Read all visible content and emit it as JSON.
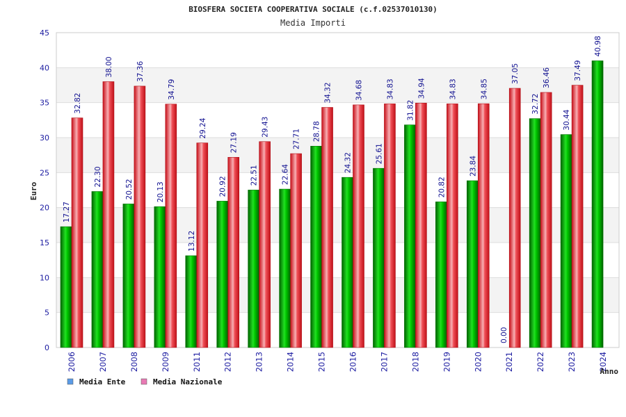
{
  "chart_data": {
    "type": "bar",
    "title": "BIOSFERA SOCIETA COOPERATIVA SOCIALE (c.f.02537010130)",
    "subtitle": "Media Importi",
    "xlabel": "Anno",
    "ylabel": "Euro",
    "ylim": [
      0,
      45
    ],
    "yticks": [
      0,
      5,
      10,
      15,
      20,
      25,
      30,
      35,
      40,
      45
    ],
    "grid": true,
    "legend_position": "bottom-left",
    "categories": [
      "2006",
      "2007",
      "2008",
      "2009",
      "2011",
      "2012",
      "2013",
      "2014",
      "2015",
      "2016",
      "2017",
      "2018",
      "2019",
      "2020",
      "2021",
      "2022",
      "2023",
      "2024"
    ],
    "series": [
      {
        "name": "Media Ente",
        "legend_color": "#5b9be6",
        "bar_color": "#00c000",
        "values": [
          17.27,
          22.3,
          20.52,
          20.13,
          13.12,
          20.92,
          22.51,
          22.64,
          28.78,
          24.32,
          25.61,
          31.82,
          20.82,
          23.84,
          0.0,
          32.72,
          30.44,
          40.98
        ],
        "labels": [
          "17.27",
          "22.30",
          "20.52",
          "20.13",
          "13.12",
          "20.92",
          "22.51",
          "22.64",
          "28.78",
          "24.32",
          "25.61",
          "31.82",
          "20.82",
          "23.84",
          "0.00",
          "32.72",
          "30.44",
          "40.98"
        ]
      },
      {
        "name": "Media Nazionale",
        "legend_color": "#e87ab4",
        "bar_color": "#e8222a",
        "values": [
          32.82,
          38.0,
          37.36,
          34.79,
          29.24,
          27.19,
          29.43,
          27.71,
          34.32,
          34.68,
          34.83,
          34.94,
          34.83,
          34.85,
          37.05,
          36.46,
          37.49,
          null
        ],
        "labels": [
          "32.82",
          "38.00",
          "37.36",
          "34.79",
          "29.24",
          "27.19",
          "29.43",
          "27.71",
          "34.32",
          "34.68",
          "34.83",
          "34.94",
          "34.83",
          "34.85",
          "37.05",
          "36.46",
          "37.49",
          null
        ]
      }
    ]
  }
}
